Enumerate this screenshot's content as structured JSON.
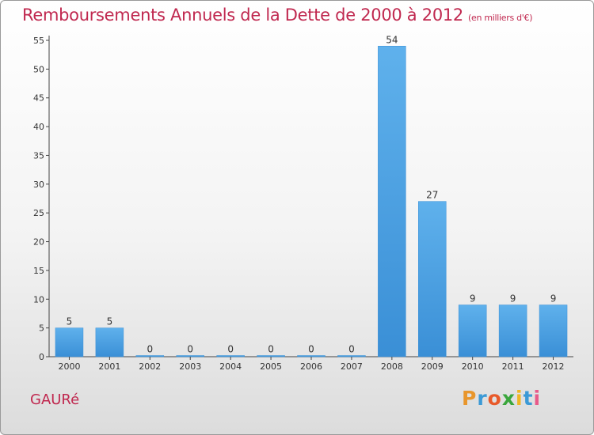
{
  "chart_data": {
    "type": "bar",
    "title": "Remboursements Annuels de la Dette de 2000 à 2012",
    "subtitle": "(en milliers d'€)",
    "categories": [
      "2000",
      "2001",
      "2002",
      "2003",
      "2004",
      "2005",
      "2006",
      "2007",
      "2008",
      "2009",
      "2010",
      "2011",
      "2012"
    ],
    "values": [
      5,
      5,
      0,
      0,
      0,
      0,
      0,
      0,
      54,
      27,
      9,
      9,
      9
    ],
    "ylim": [
      0,
      55
    ],
    "yticks": [
      0,
      5,
      10,
      15,
      20,
      25,
      30,
      35,
      40,
      45,
      50,
      55
    ],
    "grid": false,
    "bar_color": "#3a8fd6",
    "bar_color_light": "#5fb1ec"
  },
  "footer": {
    "commune": "GAURé",
    "logo_letters": [
      "P",
      "r",
      "o",
      "x",
      "i",
      "t",
      "i"
    ],
    "logo_colors": [
      "#e8962c",
      "#3c9ad6",
      "#e85a2a",
      "#3aa63c",
      "#f0b624",
      "#3c9ad6",
      "#e85a8a"
    ]
  }
}
